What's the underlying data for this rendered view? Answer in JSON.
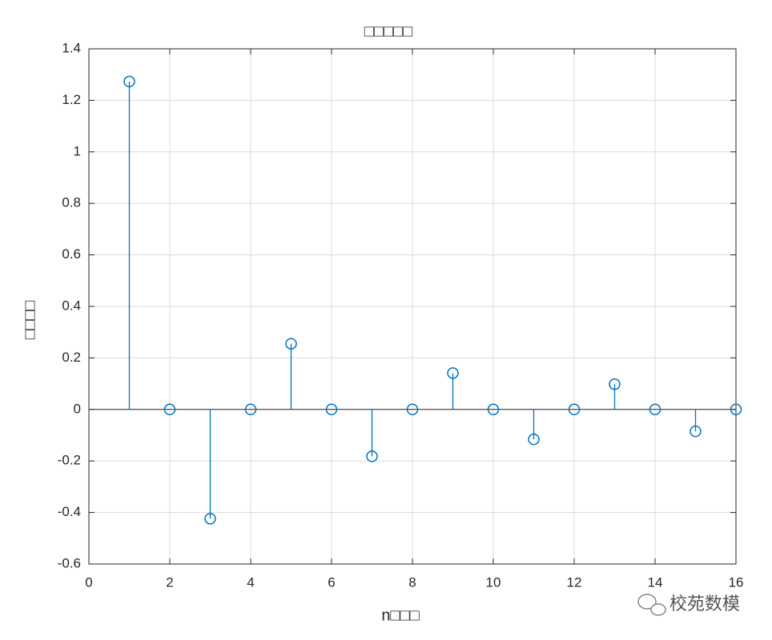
{
  "chart_data": {
    "type": "stem",
    "title": "□□□□□",
    "x_label": "n□□□",
    "y_label": "□□□□",
    "x": [
      1,
      2,
      3,
      4,
      5,
      6,
      7,
      8,
      9,
      10,
      11,
      12,
      13,
      14,
      15,
      16
    ],
    "values": [
      1.273,
      0,
      -0.424,
      0,
      0.255,
      0,
      -0.182,
      0,
      0.141,
      0,
      -0.116,
      0,
      0.098,
      0,
      -0.085,
      0
    ],
    "color": "#0072bd",
    "xlim": [
      0,
      16
    ],
    "xticks": [
      0,
      2,
      4,
      6,
      8,
      10,
      12,
      14,
      16
    ],
    "ylim": [
      -0.6,
      1.4
    ],
    "yticks": [
      -0.6,
      -0.4,
      -0.2,
      0,
      0.2,
      0.4,
      0.6,
      0.8,
      1,
      1.2,
      1.4
    ],
    "grid": true
  },
  "watermark": "校苑数模"
}
